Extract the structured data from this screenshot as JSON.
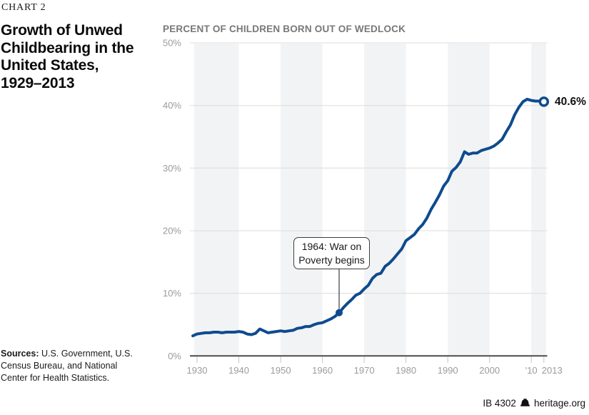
{
  "header": {
    "eyebrow": "CHART 2",
    "title": "Growth of Unwed\nChildbearing in the\nUnited States,\n1929–2013"
  },
  "chart_data": {
    "type": "line",
    "title": "PERCENT OF CHILDREN BORN OUT OF WEDLOCK",
    "xlabel": "",
    "ylabel": "",
    "ylim": [
      0,
      50
    ],
    "xlim": [
      1929,
      2013
    ],
    "grid": true,
    "line_color": "#0e4b8e",
    "x": [
      1929,
      1930,
      1931,
      1932,
      1933,
      1934,
      1935,
      1936,
      1937,
      1938,
      1939,
      1940,
      1941,
      1942,
      1943,
      1944,
      1945,
      1946,
      1947,
      1948,
      1949,
      1950,
      1951,
      1952,
      1953,
      1954,
      1955,
      1956,
      1957,
      1958,
      1959,
      1960,
      1961,
      1962,
      1963,
      1964,
      1965,
      1966,
      1967,
      1968,
      1969,
      1970,
      1971,
      1972,
      1973,
      1974,
      1975,
      1976,
      1977,
      1978,
      1979,
      1980,
      1981,
      1982,
      1983,
      1984,
      1985,
      1986,
      1987,
      1988,
      1989,
      1990,
      1991,
      1992,
      1993,
      1994,
      1995,
      1996,
      1997,
      1998,
      1999,
      2000,
      2001,
      2002,
      2003,
      2004,
      2005,
      2006,
      2007,
      2008,
      2009,
      2010,
      2011,
      2012,
      2013
    ],
    "series": [
      {
        "name": "Percent of children born out of wedlock",
        "values": [
          3.2,
          3.5,
          3.6,
          3.7,
          3.7,
          3.8,
          3.8,
          3.7,
          3.8,
          3.8,
          3.8,
          3.9,
          3.8,
          3.5,
          3.4,
          3.6,
          4.3,
          4.0,
          3.7,
          3.8,
          3.9,
          4.0,
          3.9,
          4.0,
          4.1,
          4.4,
          4.5,
          4.7,
          4.7,
          5.0,
          5.2,
          5.3,
          5.6,
          5.9,
          6.3,
          6.9,
          7.7,
          8.4,
          9.0,
          9.7,
          10.0,
          10.7,
          11.3,
          12.4,
          13.0,
          13.2,
          14.3,
          14.8,
          15.5,
          16.3,
          17.1,
          18.4,
          18.9,
          19.4,
          20.3,
          21.0,
          22.0,
          23.4,
          24.5,
          25.7,
          27.1,
          28.0,
          29.5,
          30.1,
          31.0,
          32.6,
          32.2,
          32.4,
          32.4,
          32.8,
          33.0,
          33.2,
          33.5,
          34.0,
          34.6,
          35.8,
          36.9,
          38.5,
          39.7,
          40.6,
          41.0,
          40.8,
          40.7,
          40.7,
          40.6
        ]
      }
    ],
    "yticks": [
      "0%",
      "10%",
      "20%",
      "30%",
      "40%",
      "50%"
    ],
    "xticks": [
      {
        "year": 1930,
        "label": "1930"
      },
      {
        "year": 1940,
        "label": "1940"
      },
      {
        "year": 1950,
        "label": "1950"
      },
      {
        "year": 1960,
        "label": "1960"
      },
      {
        "year": 1970,
        "label": "1970"
      },
      {
        "year": 1980,
        "label": "1980"
      },
      {
        "year": 1990,
        "label": "1990"
      },
      {
        "year": 2000,
        "label": "2000"
      },
      {
        "year": 2010,
        "label": "'10"
      },
      {
        "year": 2013,
        "label": "2013"
      }
    ],
    "shaded_decades": [
      [
        1929.3,
        1940
      ],
      [
        1950,
        1960
      ],
      [
        1970,
        1980
      ],
      [
        1990,
        2000
      ],
      [
        2010,
        2013.5
      ]
    ],
    "annotation": {
      "text": "1964: War on\nPoverty begins",
      "year": 1964,
      "value": 6.9
    },
    "end_label": "40.6%"
  },
  "footer": {
    "sources_label": "Sources:",
    "sources_text": " U.S. Government, U.S. Census Bureau, and National Center for Health Statistics.",
    "report_id": "IB 4302",
    "site": "heritage.org"
  }
}
